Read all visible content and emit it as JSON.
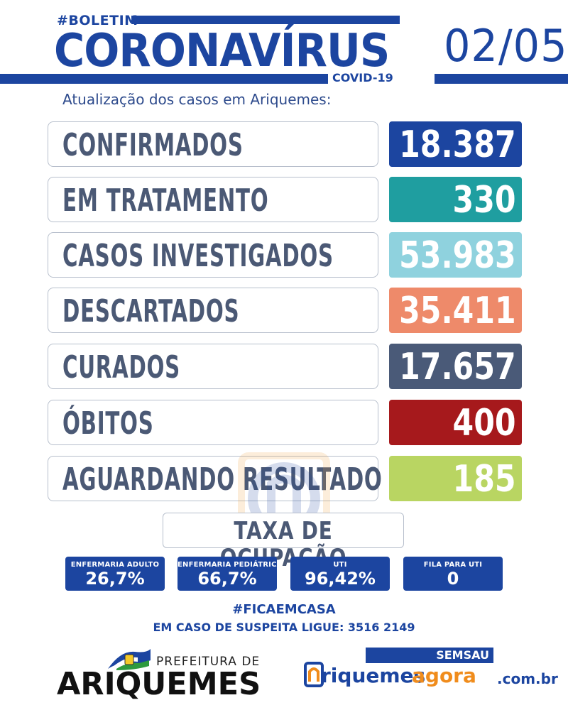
{
  "header": {
    "tag": "#BOLETIM",
    "title": "CORONAVÍRUS",
    "subtitle_small": "COVID-19",
    "date": "02/05",
    "update_text": "Atualização dos casos em Ariquemes:"
  },
  "stats": [
    {
      "label": "CONFIRMADOS",
      "value": "18.387",
      "color": "#1c45a0"
    },
    {
      "label": "EM TRATAMENTO",
      "value": "330",
      "color": "#1f9ea0"
    },
    {
      "label": "CASOS INVESTIGADOS",
      "value": "53.983",
      "color": "#8fd2de"
    },
    {
      "label": "DESCARTADOS",
      "value": "35.411",
      "color": "#ee8a6a"
    },
    {
      "label": "CURADOS",
      "value": "17.657",
      "color": "#4a5a78"
    },
    {
      "label": "ÓBITOS",
      "value": "400",
      "color": "#a6191c"
    },
    {
      "label": "AGUARDANDO RESULTADO",
      "value": "185",
      "color": "#b9d562"
    }
  ],
  "occupancy": {
    "title": "TAXA DE OCUPAÇÃO",
    "items": [
      {
        "label": "ENFERMARIA ADULTO",
        "value": "26,7%"
      },
      {
        "label": "ENFERMARIA PEDIÁTRICA",
        "value": "66,7%"
      },
      {
        "label": "UTI",
        "value": "96,42%"
      },
      {
        "label": "FILA PARA UTI",
        "value": "0"
      }
    ]
  },
  "footer": {
    "hashtag": "#FICAEMCASA",
    "hotline": "EM CASO DE SUSPEITA LIGUE: 3516 2149",
    "prefeitura_small": "PREFEITURA DE",
    "prefeitura_big": "ARIQUEMES",
    "semsau": "SEMSAU",
    "site_part1": "riquemes",
    "site_part2": "agora",
    "site_part3": ".com.br"
  },
  "colors": {
    "brand_blue": "#1c45a0",
    "label_text": "#4b5975",
    "orange": "#f08c1c"
  }
}
